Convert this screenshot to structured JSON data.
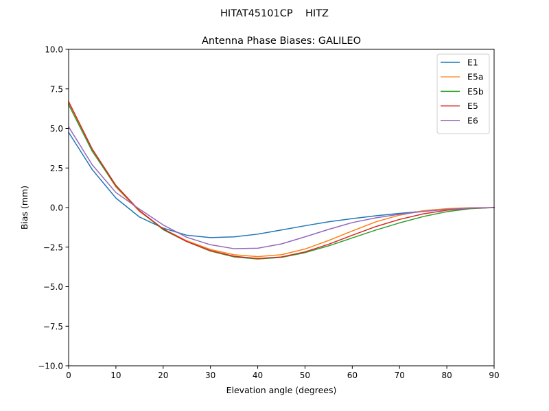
{
  "figure": {
    "suptitle": "HITAT45101CP    HITZ"
  },
  "chart_data": {
    "type": "line",
    "title": "Antenna Phase Biases: GALILEO",
    "xlabel": "Elevation angle (degrees)",
    "ylabel": "Bias (mm)",
    "xlim": [
      0,
      90
    ],
    "ylim": [
      -10,
      10
    ],
    "xticks": [
      0,
      10,
      20,
      30,
      40,
      50,
      60,
      70,
      80,
      90
    ],
    "xtick_labels": [
      "0",
      "10",
      "20",
      "30",
      "40",
      "50",
      "60",
      "70",
      "80",
      "90"
    ],
    "yticks": [
      -10,
      -7.5,
      -5,
      -2.5,
      0,
      2.5,
      5,
      7.5,
      10
    ],
    "ytick_labels": [
      "−10.0",
      "−7.5",
      "−5.0",
      "−2.5",
      "0.0",
      "2.5",
      "5.0",
      "7.5",
      "10.0"
    ],
    "grid": false,
    "legend_position": "top-right",
    "x": [
      0,
      5,
      10,
      15,
      20,
      25,
      30,
      35,
      40,
      45,
      50,
      55,
      60,
      65,
      70,
      75,
      80,
      85,
      90
    ],
    "series": [
      {
        "name": "E1",
        "color": "#1f77b4",
        "values": [
          4.75,
          2.4,
          0.6,
          -0.6,
          -1.3,
          -1.75,
          -1.9,
          -1.85,
          -1.68,
          -1.42,
          -1.15,
          -0.9,
          -0.7,
          -0.52,
          -0.37,
          -0.23,
          -0.12,
          -0.04,
          0.0
        ]
      },
      {
        "name": "E5a",
        "color": "#ff7f0e",
        "values": [
          6.55,
          3.6,
          1.3,
          -0.25,
          -1.35,
          -2.1,
          -2.65,
          -2.98,
          -3.1,
          -2.98,
          -2.62,
          -2.08,
          -1.48,
          -0.9,
          -0.48,
          -0.2,
          -0.07,
          -0.01,
          0.0
        ]
      },
      {
        "name": "E5b",
        "color": "#2ca02c",
        "values": [
          6.5,
          3.55,
          1.35,
          -0.2,
          -1.4,
          -2.15,
          -2.75,
          -3.12,
          -3.25,
          -3.15,
          -2.85,
          -2.42,
          -1.92,
          -1.42,
          -0.97,
          -0.57,
          -0.26,
          -0.07,
          0.0
        ]
      },
      {
        "name": "E5",
        "color": "#d62728",
        "values": [
          6.7,
          3.7,
          1.4,
          -0.2,
          -1.35,
          -2.15,
          -2.72,
          -3.08,
          -3.22,
          -3.12,
          -2.8,
          -2.32,
          -1.75,
          -1.2,
          -0.75,
          -0.4,
          -0.17,
          -0.04,
          0.0
        ]
      },
      {
        "name": "E6",
        "color": "#9467bd",
        "values": [
          5.1,
          2.7,
          0.95,
          -0.1,
          -1.1,
          -1.88,
          -2.35,
          -2.6,
          -2.57,
          -2.3,
          -1.85,
          -1.38,
          -0.95,
          -0.65,
          -0.42,
          -0.25,
          -0.12,
          -0.03,
          0.0
        ]
      }
    ]
  }
}
